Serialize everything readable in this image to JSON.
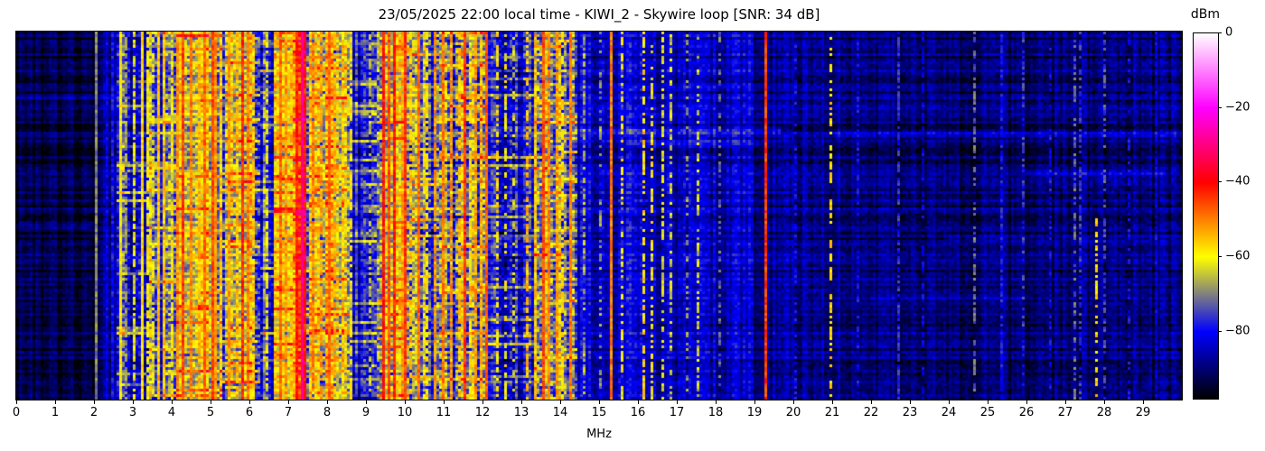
{
  "chart_data": {
    "type": "heatmap",
    "title": "23/05/2025 22:00 local time - KIWI_2 - Skywire loop [SNR: 34 dB]",
    "xlabel": "MHz",
    "x_range": [
      0,
      30
    ],
    "x_ticks": [
      0,
      1,
      2,
      3,
      4,
      5,
      6,
      7,
      8,
      9,
      10,
      11,
      12,
      13,
      14,
      15,
      16,
      17,
      18,
      19,
      20,
      21,
      22,
      23,
      24,
      25,
      26,
      27,
      28,
      29
    ],
    "y_axis_ticks": [],
    "colorbar": {
      "label": "dBm",
      "ticks": [
        0,
        -20,
        -40,
        -60,
        -80
      ],
      "vmax": 0,
      "vmin": -98
    },
    "colormap_stops": [
      [
        0,
        "#ffffff"
      ],
      [
        -20,
        "#ff00ff"
      ],
      [
        -40,
        "#ff0000"
      ],
      [
        -60,
        "#ffff00"
      ],
      [
        -80,
        "#0000ff"
      ],
      [
        -98,
        "#000000"
      ]
    ],
    "regions_format": [
      "freq_start_mhz",
      "freq_end_mhz",
      "base_level_dbm",
      "noise_var_db"
    ],
    "background_regions": [
      [
        0.0,
        2.0,
        -93,
        3.5
      ],
      [
        2.0,
        2.55,
        -89,
        4
      ],
      [
        2.55,
        3.4,
        -80,
        9
      ],
      [
        3.4,
        4.1,
        -72,
        11
      ],
      [
        4.1,
        5.3,
        -63,
        10
      ],
      [
        5.3,
        6.3,
        -66,
        12
      ],
      [
        6.3,
        6.6,
        -77,
        8
      ],
      [
        6.6,
        7.1,
        -64,
        10
      ],
      [
        7.1,
        7.5,
        -48,
        8
      ],
      [
        7.5,
        8.6,
        -64,
        11
      ],
      [
        8.6,
        9.3,
        -79,
        8
      ],
      [
        9.3,
        10.1,
        -60,
        12
      ],
      [
        10.1,
        10.9,
        -72,
        11
      ],
      [
        10.9,
        12.15,
        -68,
        13
      ],
      [
        12.15,
        13.3,
        -79,
        9
      ],
      [
        13.3,
        14.0,
        -68,
        12
      ],
      [
        14.0,
        14.45,
        -73,
        11
      ],
      [
        14.45,
        16.4,
        -84,
        6
      ],
      [
        16.4,
        19.0,
        -85,
        5
      ],
      [
        19.0,
        21.5,
        -88,
        4.5
      ],
      [
        21.5,
        26.5,
        -91,
        4
      ],
      [
        26.5,
        30.0,
        -90,
        4.5
      ]
    ],
    "carriers_format": [
      "freq_mhz",
      "level_dbm",
      "width_mhz",
      "duty_cycle",
      "y_start_frac"
    ],
    "carriers": [
      [
        2.05,
        -70,
        0.05,
        1
      ],
      [
        2.3,
        -82,
        0.05,
        1
      ],
      [
        2.45,
        -79,
        0.05,
        1
      ],
      [
        2.62,
        -60,
        0.05,
        1
      ],
      [
        2.8,
        -68,
        0.05,
        0.7
      ],
      [
        3.0,
        -62,
        0.05,
        0.8
      ],
      [
        3.2,
        -58,
        0.05,
        1
      ],
      [
        3.33,
        -60,
        0.05,
        0.8
      ],
      [
        3.5,
        -62,
        0.05,
        0.7
      ],
      [
        3.62,
        -55,
        0.05,
        1
      ],
      [
        3.8,
        -56,
        0.05,
        0.9
      ],
      [
        3.95,
        -60,
        0.05,
        0.8
      ],
      [
        4.12,
        -52,
        0.05,
        1
      ],
      [
        4.25,
        -45,
        0.07,
        1
      ],
      [
        4.47,
        -50,
        0.05,
        1
      ],
      [
        4.65,
        -55,
        0.05,
        0.8
      ],
      [
        4.8,
        -48,
        0.07,
        1
      ],
      [
        5.0,
        -46,
        0.07,
        1
      ],
      [
        5.06,
        -52,
        0.05,
        1
      ],
      [
        5.2,
        -58,
        0.05,
        0.8
      ],
      [
        5.45,
        -52,
        0.05,
        0.9
      ],
      [
        5.62,
        -55,
        0.05,
        0.8
      ],
      [
        5.8,
        -44,
        0.07,
        1
      ],
      [
        5.95,
        -50,
        0.05,
        1
      ],
      [
        6.1,
        -56,
        0.05,
        0.8
      ],
      [
        6.45,
        -62,
        0.05,
        0.6
      ],
      [
        6.75,
        -48,
        0.06,
        1
      ],
      [
        6.9,
        -52,
        0.05,
        0.9
      ],
      [
        7.2,
        -42,
        0.06,
        1
      ],
      [
        7.3,
        -29,
        0.1,
        1
      ],
      [
        7.42,
        -44,
        0.06,
        1
      ],
      [
        7.6,
        -50,
        0.05,
        0.9
      ],
      [
        7.8,
        -52,
        0.05,
        0.8
      ],
      [
        8.0,
        -48,
        0.06,
        1
      ],
      [
        8.15,
        -54,
        0.05,
        0.8
      ],
      [
        8.35,
        -58,
        0.05,
        0.7
      ],
      [
        8.6,
        -60,
        0.05,
        0.6
      ],
      [
        8.9,
        -72,
        0.05,
        0.5
      ],
      [
        9.1,
        -65,
        0.05,
        0.6
      ],
      [
        9.4,
        -42,
        0.07,
        1
      ],
      [
        9.55,
        -46,
        0.06,
        1
      ],
      [
        9.7,
        -42,
        0.07,
        1
      ],
      [
        9.9,
        -52,
        0.05,
        0.9
      ],
      [
        10.0,
        -45,
        0.06,
        1
      ],
      [
        10.15,
        -55,
        0.05,
        0.8
      ],
      [
        10.3,
        -48,
        0.06,
        1
      ],
      [
        10.55,
        -58,
        0.05,
        0.7
      ],
      [
        10.75,
        -52,
        0.05,
        0.9
      ],
      [
        10.95,
        -50,
        0.06,
        1
      ],
      [
        11.15,
        -52,
        0.05,
        0.9
      ],
      [
        11.35,
        -55,
        0.05,
        0.8
      ],
      [
        11.5,
        -44,
        0.07,
        1
      ],
      [
        11.65,
        -58,
        0.05,
        0.7
      ],
      [
        11.8,
        -52,
        0.05,
        0.9
      ],
      [
        11.95,
        -55,
        0.05,
        0.8
      ],
      [
        12.05,
        -47,
        0.06,
        1
      ],
      [
        12.35,
        -58,
        0.05,
        0.6
      ],
      [
        12.55,
        -60,
        0.05,
        0.5
      ],
      [
        12.8,
        -64,
        0.05,
        0.4
      ],
      [
        13.1,
        -55,
        0.05,
        0.6
      ],
      [
        13.35,
        -56,
        0.05,
        0.8
      ],
      [
        13.55,
        -46,
        0.07,
        1
      ],
      [
        13.7,
        -50,
        0.06,
        0.9
      ],
      [
        13.85,
        -52,
        0.05,
        0.9
      ],
      [
        14.05,
        -58,
        0.05,
        0.7
      ],
      [
        14.25,
        -50,
        0.06,
        1
      ],
      [
        14.6,
        -66,
        0.05,
        0.5
      ],
      [
        15.0,
        -68,
        0.05,
        0.4
      ],
      [
        15.3,
        -50,
        0.05,
        1
      ],
      [
        15.55,
        -60,
        0.05,
        0.5
      ],
      [
        16.15,
        -58,
        0.05,
        0.6
      ],
      [
        16.3,
        -60,
        0.05,
        0.5
      ],
      [
        16.6,
        -62,
        0.05,
        0.6
      ],
      [
        16.8,
        -63,
        0.05,
        0.5
      ],
      [
        17.2,
        -68,
        0.05,
        0.4
      ],
      [
        17.5,
        -64,
        0.05,
        0.5
      ],
      [
        18.1,
        -72,
        0.05,
        0.4
      ],
      [
        19.25,
        -45,
        0.08,
        1
      ],
      [
        20.0,
        -80,
        0.05,
        0.5
      ],
      [
        20.95,
        -58,
        0.05,
        0.55
      ],
      [
        21.6,
        -80,
        0.05,
        0.5
      ],
      [
        22.7,
        -77,
        0.05,
        0.8
      ],
      [
        23.3,
        -82,
        0.05,
        0.6
      ],
      [
        24.65,
        -72,
        0.05,
        0.5
      ],
      [
        25.35,
        -79,
        0.05,
        0.8
      ],
      [
        25.85,
        -76,
        0.05,
        0.4
      ],
      [
        26.6,
        -80,
        0.05,
        0.5
      ],
      [
        27.2,
        -72,
        0.05,
        0.5
      ],
      [
        27.35,
        -76,
        0.05,
        0.6
      ],
      [
        27.8,
        -57,
        0.05,
        0.55,
        0.5
      ],
      [
        28.0,
        -74,
        0.05,
        0.5
      ],
      [
        28.6,
        -80,
        0.05,
        0.4
      ],
      [
        29.3,
        -82,
        0.05,
        0.5
      ]
    ],
    "streaks_format": [
      "freq_start_mhz",
      "freq_end_mhz",
      "y_frac",
      "boost_db"
    ],
    "horizontal_streaks": [
      [
        14.4,
        19.6,
        0.265,
        9
      ],
      [
        15.8,
        19.0,
        0.3,
        6
      ],
      [
        21.0,
        30.0,
        0.275,
        5
      ],
      [
        24.0,
        30.0,
        0.56,
        5
      ],
      [
        26.0,
        29.5,
        0.38,
        6
      ],
      [
        22.0,
        26.0,
        0.72,
        4
      ],
      [
        0.0,
        2.0,
        0.52,
        4
      ],
      [
        0.0,
        2.5,
        0.18,
        4
      ]
    ]
  }
}
